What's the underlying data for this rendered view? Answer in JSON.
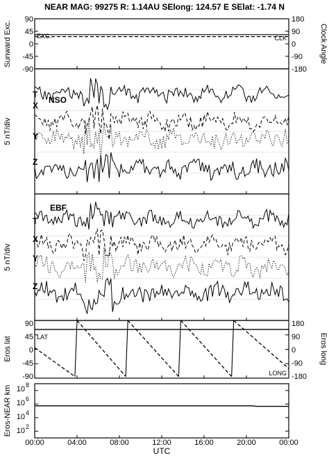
{
  "title": "NEAR MAG: 99275  R: 1.14AU  SElong:  124.57 E  SElat:   -1.74 N",
  "x_label": "UTC",
  "x_ticks": [
    "00:00",
    "04:00",
    "08:00",
    "12:00",
    "16:00",
    "20:00",
    "00:00"
  ],
  "panel1": {
    "left_label": "Sunward Exc.",
    "right_label": "Clock Angle",
    "left_ticks": [
      "90",
      "45",
      "0",
      "-45",
      "-90"
    ],
    "right_ticks": [
      "180",
      "90",
      "0",
      "-90",
      "-180"
    ],
    "exc_label": "EXC.",
    "clk_label": "CLK"
  },
  "panel2": {
    "name": "NSO",
    "y_label": "5 nT/div",
    "trace_labels": [
      "T",
      "X",
      "Y",
      "Z"
    ]
  },
  "panel3": {
    "name": "EBF",
    "y_label": "5 nT/div",
    "trace_labels": [
      "T",
      "X",
      "Y",
      "Z"
    ]
  },
  "panel4": {
    "left_label": "Eros lat",
    "right_label": "Eros long",
    "left_ticks": [
      "90",
      "45",
      "0",
      "-45",
      "-90"
    ],
    "right_ticks": [
      "180",
      "90",
      "0",
      "-90",
      "-180"
    ],
    "lat_label": "LAT",
    "long_label": "LONG"
  },
  "panel5": {
    "left_label": "Eros-NEAR km",
    "tick_bases": [
      "10",
      "10",
      "10",
      "10"
    ],
    "tick_exps": [
      "8",
      "6",
      "4",
      "2"
    ]
  },
  "chart_data": {
    "type": "line",
    "x_unit": "hours UTC",
    "x_range": [
      0,
      24
    ],
    "panels": [
      {
        "name": "Sunward Exc. / Clock Angle",
        "ylim_left": [
          -90,
          90
        ],
        "ylim_right": [
          -180,
          180
        ],
        "series": [
          {
            "name": "EXC.",
            "x": [
              0,
              24
            ],
            "y": [
              33,
              33
            ],
            "style": "solid"
          },
          {
            "name": "CLK",
            "x": [
              0,
              24
            ],
            "y": [
              26,
              26
            ],
            "style": "dashed"
          }
        ]
      },
      {
        "name": "NSO",
        "y_unit": "5 nT/div",
        "series": [
          {
            "name": "T",
            "style": "solid",
            "baseline": 0.2,
            "amplitude": 0.28,
            "seed": 11
          },
          {
            "name": "X",
            "style": "dashed",
            "baseline": 0.42,
            "amplitude": 0.32,
            "seed": 23
          },
          {
            "name": "Y",
            "style": "dotted",
            "baseline": 0.56,
            "amplitude": 0.38,
            "seed": 37
          },
          {
            "name": "Z",
            "style": "solid",
            "baseline": 0.8,
            "amplitude": 0.35,
            "seed": 51
          }
        ]
      },
      {
        "name": "EBF",
        "y_unit": "5 nT/div",
        "series": [
          {
            "name": "T",
            "style": "solid",
            "baseline": 0.2,
            "amplitude": 0.28,
            "seed": 67
          },
          {
            "name": "X",
            "style": "dashed",
            "baseline": 0.4,
            "amplitude": 0.32,
            "seed": 79
          },
          {
            "name": "Y",
            "style": "dotted",
            "baseline": 0.58,
            "amplitude": 0.4,
            "seed": 91
          },
          {
            "name": "Z",
            "style": "solid",
            "baseline": 0.78,
            "amplitude": 0.36,
            "seed": 103
          }
        ]
      },
      {
        "name": "Eros lat / Eros long",
        "ylim_left": [
          -90,
          90
        ],
        "ylim_right": [
          -180,
          180
        ],
        "series": [
          {
            "name": "LAT",
            "x": [
              0,
              24
            ],
            "y": [
              62,
              62
            ],
            "style": "solid"
          },
          {
            "name": "LONG",
            "style": "dashed",
            "x": [
              0,
              3.8,
              4.0,
              8.6,
              8.8,
              13.6,
              13.8,
              18.6,
              18.8,
              24
            ],
            "y": [
              10,
              -170,
              180,
              -170,
              180,
              -170,
              180,
              -170,
              180,
              -120
            ]
          }
        ]
      },
      {
        "name": "Eros-NEAR km",
        "y_scale": "log",
        "ylim": [
          10,
          1000000000
        ],
        "series": [
          {
            "name": "Eros-NEAR",
            "x": [
              0,
              20.5,
              21.0,
              24
            ],
            "y": [
              550000,
              550000,
              450000,
              450000
            ],
            "style": "solid"
          }
        ]
      }
    ]
  }
}
